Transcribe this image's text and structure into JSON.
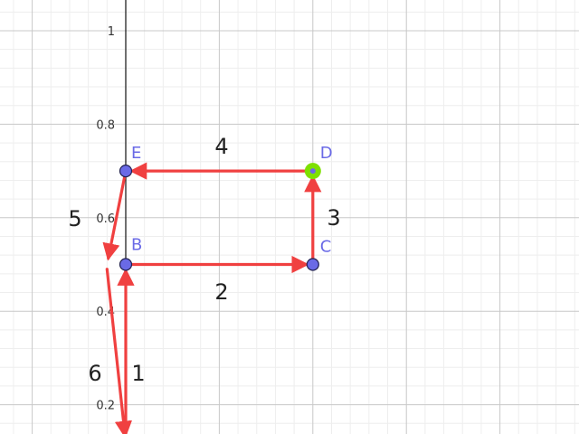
{
  "app": {
    "view": "graphing-canvas"
  },
  "colors": {
    "background": "#ffffff",
    "grid_minor": "#eeeeee",
    "grid_major": "#c8c8c8",
    "axis": "#222222",
    "vector": "#f04040",
    "point_fill": "#6a6ae6",
    "point_stroke": "#202050",
    "point_selected_ring": "#7ee000",
    "label": "#6a6ae6"
  },
  "axis": {
    "y_ticks": [
      {
        "value": 1,
        "label": "1"
      },
      {
        "value": 0.8,
        "label": "0.8"
      },
      {
        "value": 0.6,
        "label": "0.6"
      },
      {
        "value": 0.4,
        "label": "0.4"
      },
      {
        "value": 0.2,
        "label": "0.2"
      }
    ]
  },
  "points": [
    {
      "id": "E",
      "label": "E",
      "x": 0,
      "y": 0.7,
      "selected": false
    },
    {
      "id": "D",
      "label": "D",
      "x": 0.4,
      "y": 0.7,
      "selected": true
    },
    {
      "id": "B",
      "label": "B",
      "x": 0,
      "y": 0.5,
      "selected": false
    },
    {
      "id": "C",
      "label": "C",
      "x": 0.4,
      "y": 0.5,
      "selected": false
    }
  ],
  "vectors": [
    {
      "id": "v1",
      "label": "1",
      "from": [
        0,
        0.12
      ],
      "to": [
        0,
        0.5
      ]
    },
    {
      "id": "v2",
      "label": "2",
      "from": [
        0,
        0.5
      ],
      "to": [
        0.4,
        0.5
      ]
    },
    {
      "id": "v3",
      "label": "3",
      "from": [
        0.4,
        0.5
      ],
      "to": [
        0.4,
        0.7
      ]
    },
    {
      "id": "v4",
      "label": "4",
      "from": [
        0.4,
        0.7
      ],
      "to": [
        0,
        0.7
      ]
    },
    {
      "id": "v5",
      "label": "5",
      "from": [
        0,
        0.7
      ],
      "to": [
        -0.04,
        0.5
      ]
    },
    {
      "id": "v6",
      "label": "6",
      "from": [
        -0.04,
        0.49
      ],
      "to": [
        0,
        0.12
      ]
    }
  ]
}
